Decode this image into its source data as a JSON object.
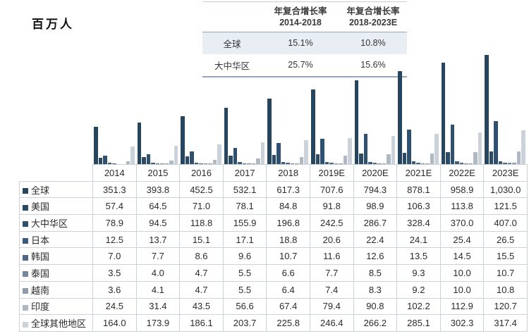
{
  "unit_label": "百万人",
  "cagr_table": {
    "col_headers": [
      {
        "line1": "年复合增长率",
        "line2": "2014-2018"
      },
      {
        "line1": "年复合增长率",
        "line2": "2018-2023E"
      }
    ],
    "rows": [
      {
        "label": "全球",
        "v1": "15.1%",
        "v2": "10.8%"
      },
      {
        "label": "大中华区",
        "v1": "25.7%",
        "v2": "15.6%"
      }
    ]
  },
  "chart_data": {
    "type": "bar",
    "title": "",
    "ylabel": "百万人",
    "ylim": [
      0,
      1030
    ],
    "grid": false,
    "legend_position": "table-row-markers",
    "categories": [
      "2014",
      "2015",
      "2016",
      "2017",
      "2018",
      "2019E",
      "2020E",
      "2021E",
      "2022E",
      "2023E"
    ],
    "series": [
      {
        "id": "global",
        "name": "全球",
        "color": "#26455f",
        "values": [
          351.3,
          393.8,
          452.5,
          532.1,
          617.3,
          707.6,
          794.3,
          878.1,
          958.9,
          1030.0
        ],
        "display": [
          "351.3",
          "393.8",
          "452.5",
          "532.1",
          "617.3",
          "707.6",
          "794.3",
          "878.1",
          "958.9",
          "1,030.0"
        ]
      },
      {
        "id": "us",
        "name": "美国",
        "color": "#2b4a66",
        "values": [
          57.4,
          64.5,
          71.0,
          78.1,
          84.8,
          91.8,
          98.9,
          106.3,
          113.8,
          121.5
        ],
        "display": [
          "57.4",
          "64.5",
          "71.0",
          "78.1",
          "84.8",
          "91.8",
          "98.9",
          "106.3",
          "113.8",
          "121.5"
        ]
      },
      {
        "id": "greater-china",
        "name": "大中华区",
        "color": "#2f506e",
        "values": [
          78.9,
          94.5,
          118.8,
          155.9,
          196.8,
          242.5,
          286.7,
          328.4,
          370.0,
          407.0
        ],
        "display": [
          "78.9",
          "94.5",
          "118.8",
          "155.9",
          "196.8",
          "242.5",
          "286.7",
          "328.4",
          "370.0",
          "407.0"
        ]
      },
      {
        "id": "japan",
        "name": "日本",
        "color": "#3c5a79",
        "values": [
          12.5,
          13.7,
          15.1,
          17.1,
          18.8,
          20.6,
          22.4,
          24.1,
          25.4,
          26.5
        ],
        "display": [
          "12.5",
          "13.7",
          "15.1",
          "17.1",
          "18.8",
          "20.6",
          "22.4",
          "24.1",
          "25.4",
          "26.5"
        ]
      },
      {
        "id": "korea",
        "name": "韩国",
        "color": "#4c6885",
        "values": [
          7.0,
          7.7,
          8.6,
          9.6,
          10.7,
          11.6,
          12.6,
          13.5,
          14.5,
          15.5
        ],
        "display": [
          "7.0",
          "7.7",
          "8.6",
          "9.6",
          "10.7",
          "11.6",
          "12.6",
          "13.5",
          "14.5",
          "15.5"
        ]
      },
      {
        "id": "thailand",
        "name": "泰国",
        "color": "#75879b",
        "values": [
          3.5,
          4.0,
          4.7,
          5.5,
          6.6,
          7.7,
          8.5,
          9.3,
          10.0,
          10.7
        ],
        "display": [
          "3.5",
          "4.0",
          "4.7",
          "5.5",
          "6.6",
          "7.7",
          "8.5",
          "9.3",
          "10.0",
          "10.7"
        ]
      },
      {
        "id": "vietnam",
        "name": "越南",
        "color": "#8f9cab",
        "values": [
          3.6,
          4.1,
          4.7,
          5.5,
          6.4,
          7.4,
          8.3,
          9.2,
          10.0,
          10.8
        ],
        "display": [
          "3.6",
          "4.1",
          "4.7",
          "5.5",
          "6.4",
          "7.4",
          "8.3",
          "9.2",
          "10.0",
          "10.8"
        ]
      },
      {
        "id": "india",
        "name": "印度",
        "color": "#afb8c3",
        "values": [
          24.5,
          31.4,
          43.5,
          56.6,
          67.4,
          79.4,
          90.8,
          102.2,
          112.9,
          120.7
        ],
        "display": [
          "24.5",
          "31.4",
          "43.5",
          "56.6",
          "67.4",
          "79.4",
          "90.8",
          "102.2",
          "112.9",
          "120.7"
        ]
      },
      {
        "id": "rest-of-world",
        "name": "全球其他地区",
        "color": "#ccd2d9",
        "values": [
          164.0,
          173.9,
          186.1,
          203.7,
          225.8,
          246.4,
          266.2,
          285.1,
          302.3,
          317.4
        ],
        "display": [
          "164.0",
          "173.9",
          "186.1",
          "203.7",
          "225.8",
          "246.4",
          "266.2",
          "285.1",
          "302.3",
          "317.4"
        ]
      }
    ]
  },
  "colors": {
    "background": "#ffffff",
    "table_border": "#c9d1d9",
    "cagr_rule": "#93a8bb",
    "cagr_highlight_row": "#e8eef4",
    "text": "#2b2b2b"
  }
}
